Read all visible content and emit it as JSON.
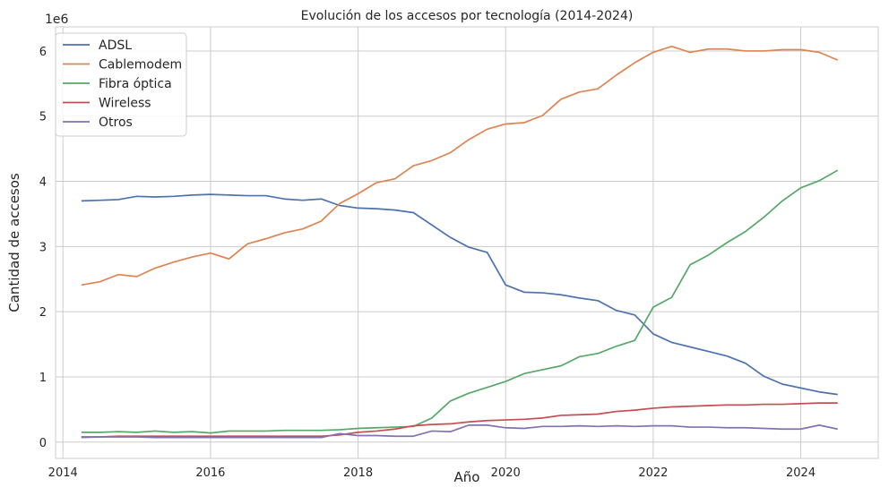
{
  "chart_data": {
    "type": "line",
    "title": "Evolución de los accesos por tecnología (2014-2024)",
    "xlabel": "Año",
    "ylabel": "Cantidad de accesos",
    "offset_text": "1e6",
    "xlim": [
      2013.9,
      2025.05
    ],
    "ylim": [
      -0.25,
      6.37
    ],
    "x_ticks": [
      2014,
      2016,
      2018,
      2020,
      2022,
      2024
    ],
    "y_ticks": [
      0,
      1,
      2,
      3,
      4,
      5,
      6
    ],
    "grid": true,
    "legend_position": "top-left",
    "x": [
      2014.25,
      2014.5,
      2014.75,
      2015.0,
      2015.25,
      2015.5,
      2015.75,
      2016.0,
      2016.25,
      2016.5,
      2016.75,
      2017.0,
      2017.25,
      2017.5,
      2017.75,
      2018.0,
      2018.25,
      2018.5,
      2018.75,
      2019.0,
      2019.25,
      2019.5,
      2019.75,
      2020.0,
      2020.25,
      2020.5,
      2020.75,
      2021.0,
      2021.25,
      2021.5,
      2021.75,
      2022.0,
      2022.25,
      2022.5,
      2022.75,
      2023.0,
      2023.25,
      2023.5,
      2023.75,
      2024.0,
      2024.25,
      2024.5
    ],
    "series": [
      {
        "name": "ADSL",
        "color": "#4c72b0",
        "values": [
          3.7,
          3.71,
          3.72,
          3.77,
          3.76,
          3.77,
          3.79,
          3.8,
          3.79,
          3.78,
          3.78,
          3.73,
          3.71,
          3.73,
          3.63,
          3.59,
          3.58,
          3.56,
          3.52,
          3.33,
          3.14,
          2.99,
          2.91,
          2.41,
          2.3,
          2.29,
          2.26,
          2.21,
          2.17,
          2.02,
          1.95,
          1.66,
          1.53,
          1.46,
          1.39,
          1.32,
          1.21,
          1.01,
          0.89,
          0.83,
          0.77,
          0.73
        ]
      },
      {
        "name": "Cablemodem",
        "color": "#dd8452",
        "values": [
          2.41,
          2.46,
          2.57,
          2.54,
          2.67,
          2.76,
          2.84,
          2.9,
          2.81,
          3.04,
          3.12,
          3.21,
          3.27,
          3.39,
          3.66,
          3.81,
          3.98,
          4.04,
          4.24,
          4.32,
          4.44,
          4.64,
          4.8,
          4.88,
          4.9,
          5.01,
          5.26,
          5.37,
          5.42,
          5.63,
          5.82,
          5.98,
          6.07,
          5.98,
          6.03,
          6.03,
          6.0,
          6.0,
          6.02,
          6.02,
          5.98,
          5.86
        ]
      },
      {
        "name": "Fibra óptica",
        "color": "#55a868",
        "values": [
          0.15,
          0.15,
          0.16,
          0.15,
          0.17,
          0.15,
          0.16,
          0.14,
          0.17,
          0.17,
          0.17,
          0.18,
          0.18,
          0.18,
          0.19,
          0.21,
          0.22,
          0.23,
          0.24,
          0.37,
          0.63,
          0.75,
          0.84,
          0.93,
          1.05,
          1.11,
          1.17,
          1.31,
          1.36,
          1.47,
          1.56,
          2.07,
          2.22,
          2.72,
          2.87,
          3.06,
          3.23,
          3.45,
          3.7,
          3.9,
          4.01,
          4.17
        ]
      },
      {
        "name": "Wireless",
        "color": "#c44e52",
        "values": [
          0.08,
          0.08,
          0.09,
          0.09,
          0.09,
          0.09,
          0.09,
          0.09,
          0.09,
          0.09,
          0.09,
          0.09,
          0.09,
          0.09,
          0.11,
          0.15,
          0.17,
          0.2,
          0.25,
          0.27,
          0.28,
          0.31,
          0.33,
          0.34,
          0.35,
          0.37,
          0.41,
          0.42,
          0.43,
          0.47,
          0.49,
          0.52,
          0.54,
          0.55,
          0.56,
          0.57,
          0.57,
          0.58,
          0.58,
          0.59,
          0.6,
          0.6
        ]
      },
      {
        "name": "Otros",
        "color": "#8172b3",
        "values": [
          0.07,
          0.08,
          0.08,
          0.08,
          0.07,
          0.07,
          0.07,
          0.07,
          0.07,
          0.07,
          0.07,
          0.07,
          0.07,
          0.07,
          0.13,
          0.1,
          0.1,
          0.09,
          0.09,
          0.17,
          0.16,
          0.26,
          0.26,
          0.22,
          0.21,
          0.24,
          0.24,
          0.25,
          0.24,
          0.25,
          0.24,
          0.25,
          0.25,
          0.23,
          0.23,
          0.22,
          0.22,
          0.21,
          0.2,
          0.2,
          0.26,
          0.2
        ]
      }
    ]
  }
}
